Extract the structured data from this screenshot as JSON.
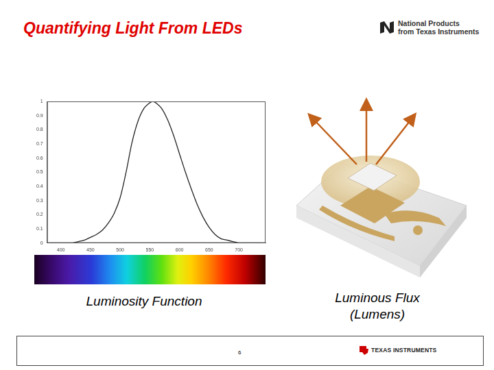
{
  "slide": {
    "title": "Quantifying Light From LEDs",
    "logo_top": [
      "National Products",
      "from Texas Instruments"
    ],
    "captions": [
      [
        "Luminosity Function"
      ],
      [
        "Luminous Flux",
        "(Lumens)"
      ]
    ],
    "footer": {
      "page": "6",
      "logo": "TEXAS INSTRUMENTS"
    }
  },
  "chart_data": {
    "type": "line",
    "x": [
      380,
      390,
      400,
      410,
      420,
      430,
      440,
      450,
      460,
      470,
      480,
      490,
      500,
      510,
      520,
      530,
      540,
      550,
      555,
      560,
      570,
      580,
      590,
      600,
      610,
      620,
      630,
      640,
      650,
      660,
      670,
      680,
      690,
      700,
      710,
      720,
      730,
      740
    ],
    "values": [
      0,
      0,
      0,
      0,
      0,
      0.01,
      0.02,
      0.04,
      0.06,
      0.09,
      0.14,
      0.21,
      0.32,
      0.5,
      0.71,
      0.86,
      0.95,
      0.99,
      1,
      0.99,
      0.95,
      0.87,
      0.76,
      0.63,
      0.5,
      0.38,
      0.27,
      0.18,
      0.11,
      0.06,
      0.03,
      0.02,
      0.01,
      0,
      0,
      0,
      0,
      0
    ],
    "color": "#222222",
    "marker": "none",
    "line_style": "solid",
    "xlim": [
      377,
      745
    ],
    "xticks": [
      400,
      450,
      500,
      550,
      600,
      650,
      700
    ],
    "ylim": [
      0,
      1
    ],
    "yticks": [
      0,
      0.1,
      0.2,
      0.3,
      0.4,
      0.5,
      0.6,
      0.7,
      0.8,
      0.9,
      1
    ],
    "grid": false
  }
}
